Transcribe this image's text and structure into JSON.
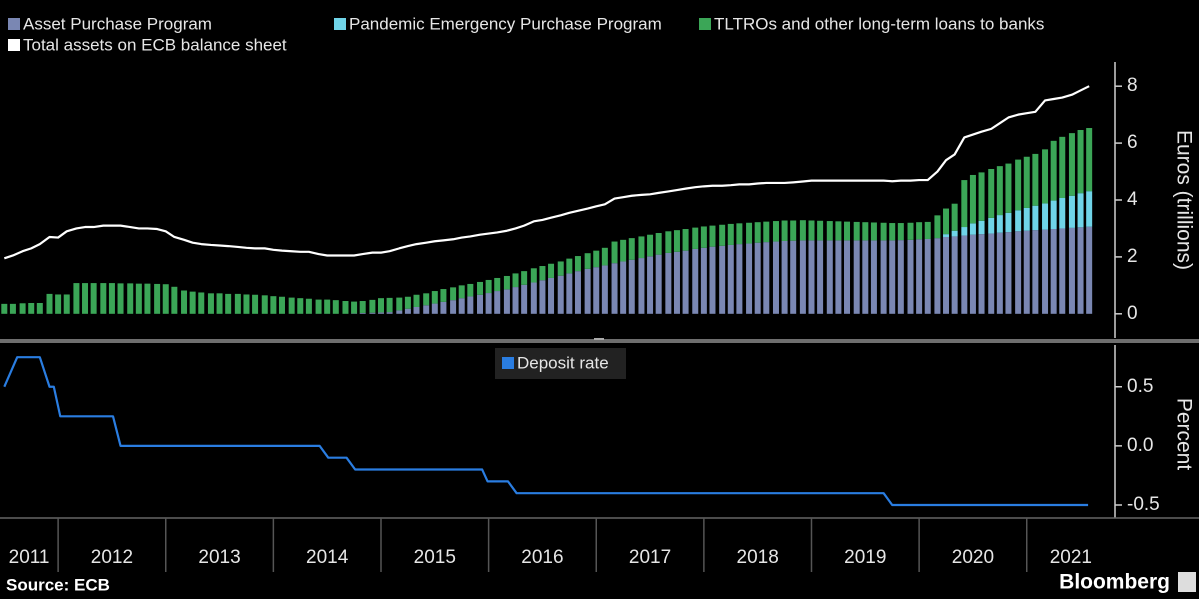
{
  "chart_data": [
    {
      "type": "bar",
      "stacked": true,
      "x": [
        2011.5,
        2011.58,
        2011.67,
        2011.75,
        2011.83,
        2011.92,
        2012,
        2012.08,
        2012.17,
        2012.25,
        2012.33,
        2012.42,
        2012.5,
        2012.58,
        2012.67,
        2012.75,
        2012.83,
        2012.92,
        2013,
        2013.08,
        2013.17,
        2013.25,
        2013.33,
        2013.42,
        2013.5,
        2013.58,
        2013.67,
        2013.75,
        2013.83,
        2013.92,
        2014,
        2014.08,
        2014.17,
        2014.25,
        2014.33,
        2014.42,
        2014.5,
        2014.58,
        2014.67,
        2014.75,
        2014.83,
        2014.92,
        2015,
        2015.08,
        2015.17,
        2015.25,
        2015.33,
        2015.42,
        2015.5,
        2015.58,
        2015.67,
        2015.75,
        2015.83,
        2015.92,
        2016,
        2016.08,
        2016.17,
        2016.25,
        2016.33,
        2016.42,
        2016.5,
        2016.58,
        2016.67,
        2016.75,
        2016.83,
        2016.92,
        2017,
        2017.08,
        2017.17,
        2017.25,
        2017.33,
        2017.42,
        2017.5,
        2017.58,
        2017.67,
        2017.75,
        2017.83,
        2017.92,
        2018,
        2018.08,
        2018.17,
        2018.25,
        2018.33,
        2018.42,
        2018.5,
        2018.58,
        2018.67,
        2018.75,
        2018.83,
        2018.92,
        2019,
        2019.08,
        2019.17,
        2019.25,
        2019.33,
        2019.42,
        2019.5,
        2019.58,
        2019.67,
        2019.75,
        2019.83,
        2019.92,
        2020,
        2020.08,
        2020.17,
        2020.25,
        2020.33,
        2020.42,
        2020.5,
        2020.58,
        2020.67,
        2020.75,
        2020.83,
        2020.92,
        2021,
        2021.08,
        2021.17,
        2021.25,
        2021.33,
        2021.42,
        2021.5,
        2021.58
      ],
      "series": [
        {
          "name": "Asset Purchase Program",
          "color": "#7a87b3",
          "values": [
            0,
            0,
            0,
            0,
            0,
            0,
            0,
            0,
            0,
            0,
            0,
            0,
            0,
            0,
            0,
            0,
            0,
            0,
            0,
            0,
            0,
            0,
            0,
            0,
            0,
            0,
            0,
            0,
            0,
            0,
            0,
            0,
            0,
            0,
            0,
            0,
            0,
            0,
            0,
            0.01,
            0.03,
            0.04,
            0.05,
            0.06,
            0.12,
            0.18,
            0.24,
            0.3,
            0.36,
            0.42,
            0.48,
            0.55,
            0.61,
            0.67,
            0.73,
            0.8,
            0.86,
            0.94,
            1.02,
            1.1,
            1.18,
            1.26,
            1.34,
            1.42,
            1.5,
            1.58,
            1.64,
            1.7,
            1.78,
            1.84,
            1.9,
            1.96,
            2.02,
            2.08,
            2.14,
            2.18,
            2.22,
            2.28,
            2.32,
            2.36,
            2.39,
            2.42,
            2.45,
            2.47,
            2.5,
            2.52,
            2.54,
            2.56,
            2.57,
            2.58,
            2.58,
            2.58,
            2.58,
            2.58,
            2.58,
            2.58,
            2.58,
            2.58,
            2.58,
            2.58,
            2.59,
            2.6,
            2.62,
            2.63,
            2.66,
            2.7,
            2.72,
            2.75,
            2.78,
            2.8,
            2.82,
            2.85,
            2.87,
            2.9,
            2.92,
            2.94,
            2.96,
            2.98,
            3.0,
            3.02,
            3.04,
            3.06
          ]
        },
        {
          "name": "Pandemic Emergency Purchase Program",
          "color": "#6fd4e8",
          "values": [
            0,
            0,
            0,
            0,
            0,
            0,
            0,
            0,
            0,
            0,
            0,
            0,
            0,
            0,
            0,
            0,
            0,
            0,
            0,
            0,
            0,
            0,
            0,
            0,
            0,
            0,
            0,
            0,
            0,
            0,
            0,
            0,
            0,
            0,
            0,
            0,
            0,
            0,
            0,
            0,
            0,
            0,
            0,
            0,
            0,
            0,
            0,
            0,
            0,
            0,
            0,
            0,
            0,
            0,
            0,
            0,
            0,
            0,
            0,
            0,
            0,
            0,
            0,
            0,
            0,
            0,
            0,
            0,
            0,
            0,
            0,
            0,
            0,
            0,
            0,
            0,
            0,
            0,
            0,
            0,
            0,
            0,
            0,
            0,
            0,
            0,
            0,
            0,
            0,
            0,
            0,
            0,
            0,
            0,
            0,
            0,
            0,
            0,
            0,
            0,
            0,
            0,
            0,
            0,
            0,
            0.1,
            0.2,
            0.3,
            0.4,
            0.47,
            0.55,
            0.62,
            0.68,
            0.74,
            0.8,
            0.86,
            0.92,
            1.0,
            1.07,
            1.13,
            1.2,
            1.25
          ]
        },
        {
          "name": "TLTROs and other long-term loans to banks",
          "color": "#3ba657",
          "values": [
            0.35,
            0.35,
            0.37,
            0.38,
            0.38,
            0.7,
            0.68,
            0.68,
            1.08,
            1.08,
            1.08,
            1.08,
            1.08,
            1.07,
            1.07,
            1.06,
            1.06,
            1.05,
            1.04,
            0.95,
            0.82,
            0.78,
            0.75,
            0.72,
            0.72,
            0.7,
            0.7,
            0.68,
            0.67,
            0.65,
            0.62,
            0.6,
            0.57,
            0.55,
            0.53,
            0.5,
            0.5,
            0.48,
            0.45,
            0.42,
            0.42,
            0.45,
            0.5,
            0.5,
            0.45,
            0.42,
            0.43,
            0.42,
            0.44,
            0.45,
            0.45,
            0.45,
            0.44,
            0.45,
            0.46,
            0.46,
            0.47,
            0.48,
            0.48,
            0.5,
            0.5,
            0.5,
            0.5,
            0.52,
            0.53,
            0.55,
            0.58,
            0.62,
            0.76,
            0.76,
            0.76,
            0.76,
            0.76,
            0.76,
            0.76,
            0.76,
            0.76,
            0.75,
            0.75,
            0.74,
            0.74,
            0.74,
            0.73,
            0.73,
            0.72,
            0.72,
            0.72,
            0.72,
            0.71,
            0.71,
            0.7,
            0.69,
            0.68,
            0.67,
            0.66,
            0.65,
            0.64,
            0.63,
            0.62,
            0.61,
            0.6,
            0.6,
            0.6,
            0.6,
            0.8,
            0.9,
            0.95,
            1.65,
            1.7,
            1.7,
            1.72,
            1.72,
            1.73,
            1.78,
            1.8,
            1.82,
            1.9,
            2.1,
            2.15,
            2.2,
            2.22,
            2.22
          ]
        },
        {
          "name": "Total assets on ECB balance sheet",
          "color": "#ffffff",
          "type": "line",
          "values": [
            1.95,
            2.05,
            2.2,
            2.3,
            2.45,
            2.7,
            2.68,
            2.9,
            3.0,
            3.05,
            3.05,
            3.1,
            3.1,
            3.1,
            3.05,
            3.0,
            3.0,
            2.98,
            2.9,
            2.7,
            2.6,
            2.5,
            2.45,
            2.42,
            2.4,
            2.38,
            2.35,
            2.32,
            2.3,
            2.3,
            2.25,
            2.22,
            2.2,
            2.18,
            2.18,
            2.1,
            2.05,
            2.05,
            2.05,
            2.05,
            2.1,
            2.15,
            2.15,
            2.2,
            2.3,
            2.38,
            2.45,
            2.5,
            2.55,
            2.58,
            2.62,
            2.68,
            2.72,
            2.78,
            2.82,
            2.86,
            2.92,
            3.0,
            3.1,
            3.25,
            3.3,
            3.38,
            3.46,
            3.55,
            3.62,
            3.7,
            3.78,
            3.85,
            4.05,
            4.1,
            4.15,
            4.18,
            4.2,
            4.25,
            4.3,
            4.35,
            4.4,
            4.45,
            4.48,
            4.5,
            4.5,
            4.52,
            4.55,
            4.55,
            4.58,
            4.6,
            4.6,
            4.6,
            4.62,
            4.65,
            4.68,
            4.68,
            4.68,
            4.68,
            4.68,
            4.68,
            4.68,
            4.68,
            4.68,
            4.66,
            4.68,
            4.68,
            4.7,
            4.7,
            5.0,
            5.4,
            5.6,
            6.2,
            6.3,
            6.4,
            6.5,
            6.7,
            6.9,
            7.0,
            7.05,
            7.1,
            7.5,
            7.55,
            7.6,
            7.7,
            7.85,
            8.0
          ]
        }
      ],
      "xlim": [
        2011.46,
        2021.82
      ],
      "ylim": [
        -0.85,
        8.85
      ],
      "yticks": [
        0,
        2,
        4,
        6,
        8
      ],
      "y_label": "Euros (trillions)",
      "grid": false
    },
    {
      "type": "line",
      "x": [
        2011.5,
        2011.62,
        2011.83,
        2011.92,
        2011.96,
        2012.02,
        2012.51,
        2012.58,
        2014.43,
        2014.51,
        2014.68,
        2014.76,
        2015.94,
        2015.99,
        2016.18,
        2016.26,
        2019.67,
        2019.75,
        2021.57
      ],
      "series": [
        {
          "name": "Deposit rate",
          "color": "#2a7de1",
          "values": [
            0.5,
            0.75,
            0.75,
            0.5,
            0.5,
            0.25,
            0.25,
            0,
            0,
            -0.1,
            -0.1,
            -0.2,
            -0.2,
            -0.3,
            -0.3,
            -0.4,
            -0.4,
            -0.5,
            -0.5
          ]
        }
      ],
      "xlim": [
        2011.46,
        2021.82
      ],
      "xticks": [
        2011,
        2012,
        2013,
        2014,
        2015,
        2016,
        2017,
        2018,
        2019,
        2020,
        2021
      ],
      "ylim": [
        -0.61,
        0.87
      ],
      "yticks": [
        0.5,
        {
          "value": 0,
          "label": "0.0"
        },
        -0.5
      ],
      "y_label": "Percent",
      "grid": false
    }
  ],
  "source": "Source: ECB",
  "brand": "Bloomberg"
}
